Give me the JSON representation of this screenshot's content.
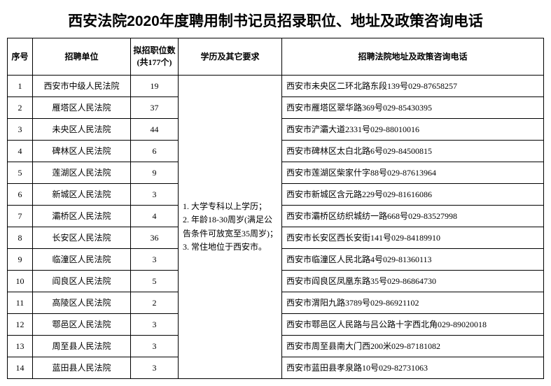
{
  "title": "西安法院2020年度聘用制书记员招录职位、地址及政策咨询电话",
  "headers": {
    "seq": "序号",
    "unit": "招聘单位",
    "count": "拟招职位数\n(共177个)",
    "req": "学历及其它要求",
    "addr": "招聘法院地址及政策咨询电话"
  },
  "requirements": "1. 大学专科以上学历；\n2. 年龄18-30周岁(满足公告条件可放宽至35周岁)；\n3. 常住地位于西安市。",
  "rows": [
    {
      "seq": "1",
      "unit": "西安市中级人民法院",
      "count": "19",
      "addr": "西安市未央区二环北路东段139号029-87658257"
    },
    {
      "seq": "2",
      "unit": "雁塔区人民法院",
      "count": "37",
      "addr": "西安市雁塔区翠华路369号029-85430395"
    },
    {
      "seq": "3",
      "unit": "未央区人民法院",
      "count": "44",
      "addr": "西安市浐灞大道2331号029-88010016"
    },
    {
      "seq": "4",
      "unit": "碑林区人民法院",
      "count": "6",
      "addr": "西安市碑林区太白北路6号029-84500815"
    },
    {
      "seq": "5",
      "unit": "莲湖区人民法院",
      "count": "9",
      "addr": "西安市莲湖区柴家什字88号029-87613964"
    },
    {
      "seq": "6",
      "unit": "新城区人民法院",
      "count": "3",
      "addr": "西安市新城区含元路229号029-81616086"
    },
    {
      "seq": "7",
      "unit": "灞桥区人民法院",
      "count": "4",
      "addr": "西安市灞桥区纺织城纺一路668号029-83527998"
    },
    {
      "seq": "8",
      "unit": "长安区人民法院",
      "count": "36",
      "addr": "西安市长安区西长安街141号029-84189910"
    },
    {
      "seq": "9",
      "unit": "临潼区人民法院",
      "count": "3",
      "addr": "西安市临潼区人民北路4号029-81360113"
    },
    {
      "seq": "10",
      "unit": "阎良区人民法院",
      "count": "5",
      "addr": "西安市阎良区凤凰东路35号029-86864730"
    },
    {
      "seq": "11",
      "unit": "高陵区人民法院",
      "count": "2",
      "addr": "西安市渭阳九路3789号029-86921102"
    },
    {
      "seq": "12",
      "unit": "鄠邑区人民法院",
      "count": "3",
      "addr": "西安市鄠邑区人民路与吕公路十字西北角029-89020018"
    },
    {
      "seq": "13",
      "unit": "周至县人民法院",
      "count": "3",
      "addr": "西安市周至县南大门西200米029-87181082"
    },
    {
      "seq": "14",
      "unit": "蓝田县人民法院",
      "count": "3",
      "addr": "西安市蓝田县孝泉路10号029-82731063"
    }
  ]
}
